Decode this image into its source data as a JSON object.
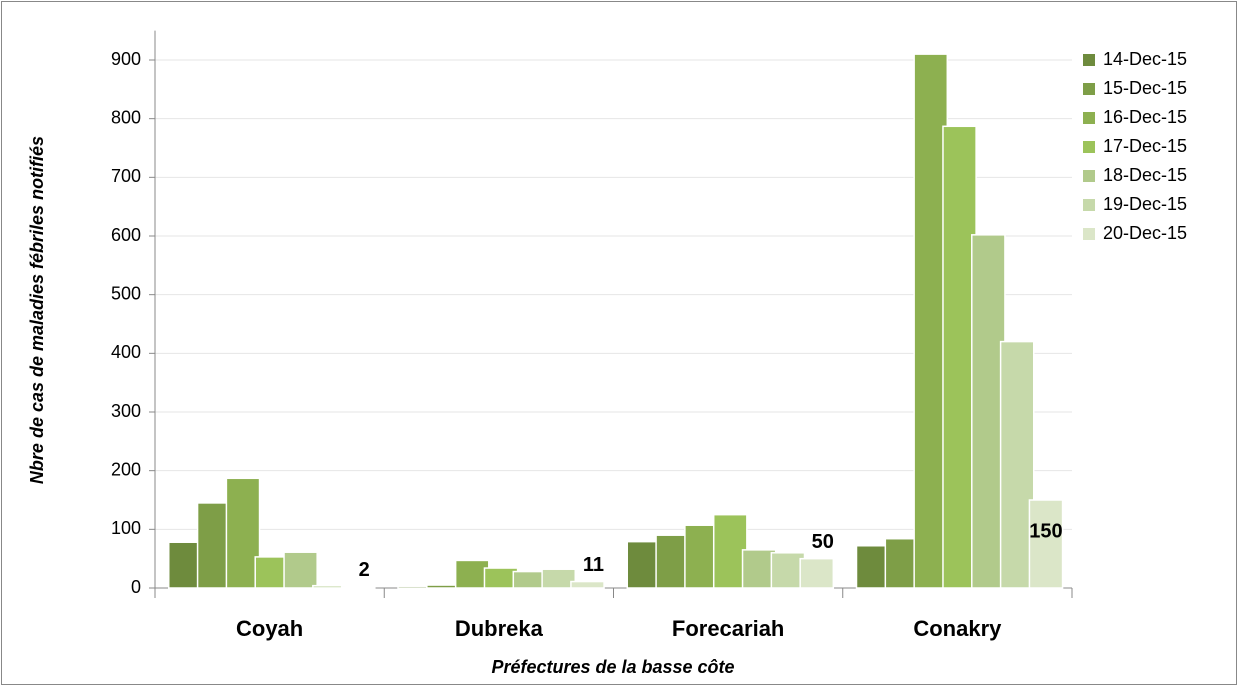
{
  "chart_data": {
    "type": "bar",
    "x_label": "Préfectures de la basse côte",
    "y_label": "Nbre de cas de maladies fébriles notifiés",
    "categories": [
      "Coyah",
      "Dubreka",
      "Forecariah",
      "Conakry"
    ],
    "series": [
      {
        "name": "14-Dec-15",
        "color": "#6e8b3d",
        "values": [
          78,
          3,
          79,
          72
        ]
      },
      {
        "name": "15-Dec-15",
        "color": "#7e9e47",
        "values": [
          145,
          5,
          90,
          84
        ]
      },
      {
        "name": "16-Dec-15",
        "color": "#8db050",
        "values": [
          187,
          47,
          107,
          910
        ]
      },
      {
        "name": "17-Dec-15",
        "color": "#9cc35a",
        "values": [
          53,
          34,
          125,
          787
        ]
      },
      {
        "name": "18-Dec-15",
        "color": "#b1ca8b",
        "values": [
          61,
          28,
          65,
          602
        ]
      },
      {
        "name": "19-Dec-15",
        "color": "#c6d9aa",
        "values": [
          4,
          32,
          60,
          420
        ]
      },
      {
        "name": "20-Dec-15",
        "color": "#dbe6c8",
        "values": [
          2,
          11,
          50,
          150
        ]
      }
    ],
    "ylim": [
      0,
      950
    ],
    "yticks": [
      0,
      100,
      200,
      300,
      400,
      500,
      600,
      700,
      800,
      900
    ],
    "grid": true,
    "legend": "right",
    "data_labels_series": 6
  }
}
